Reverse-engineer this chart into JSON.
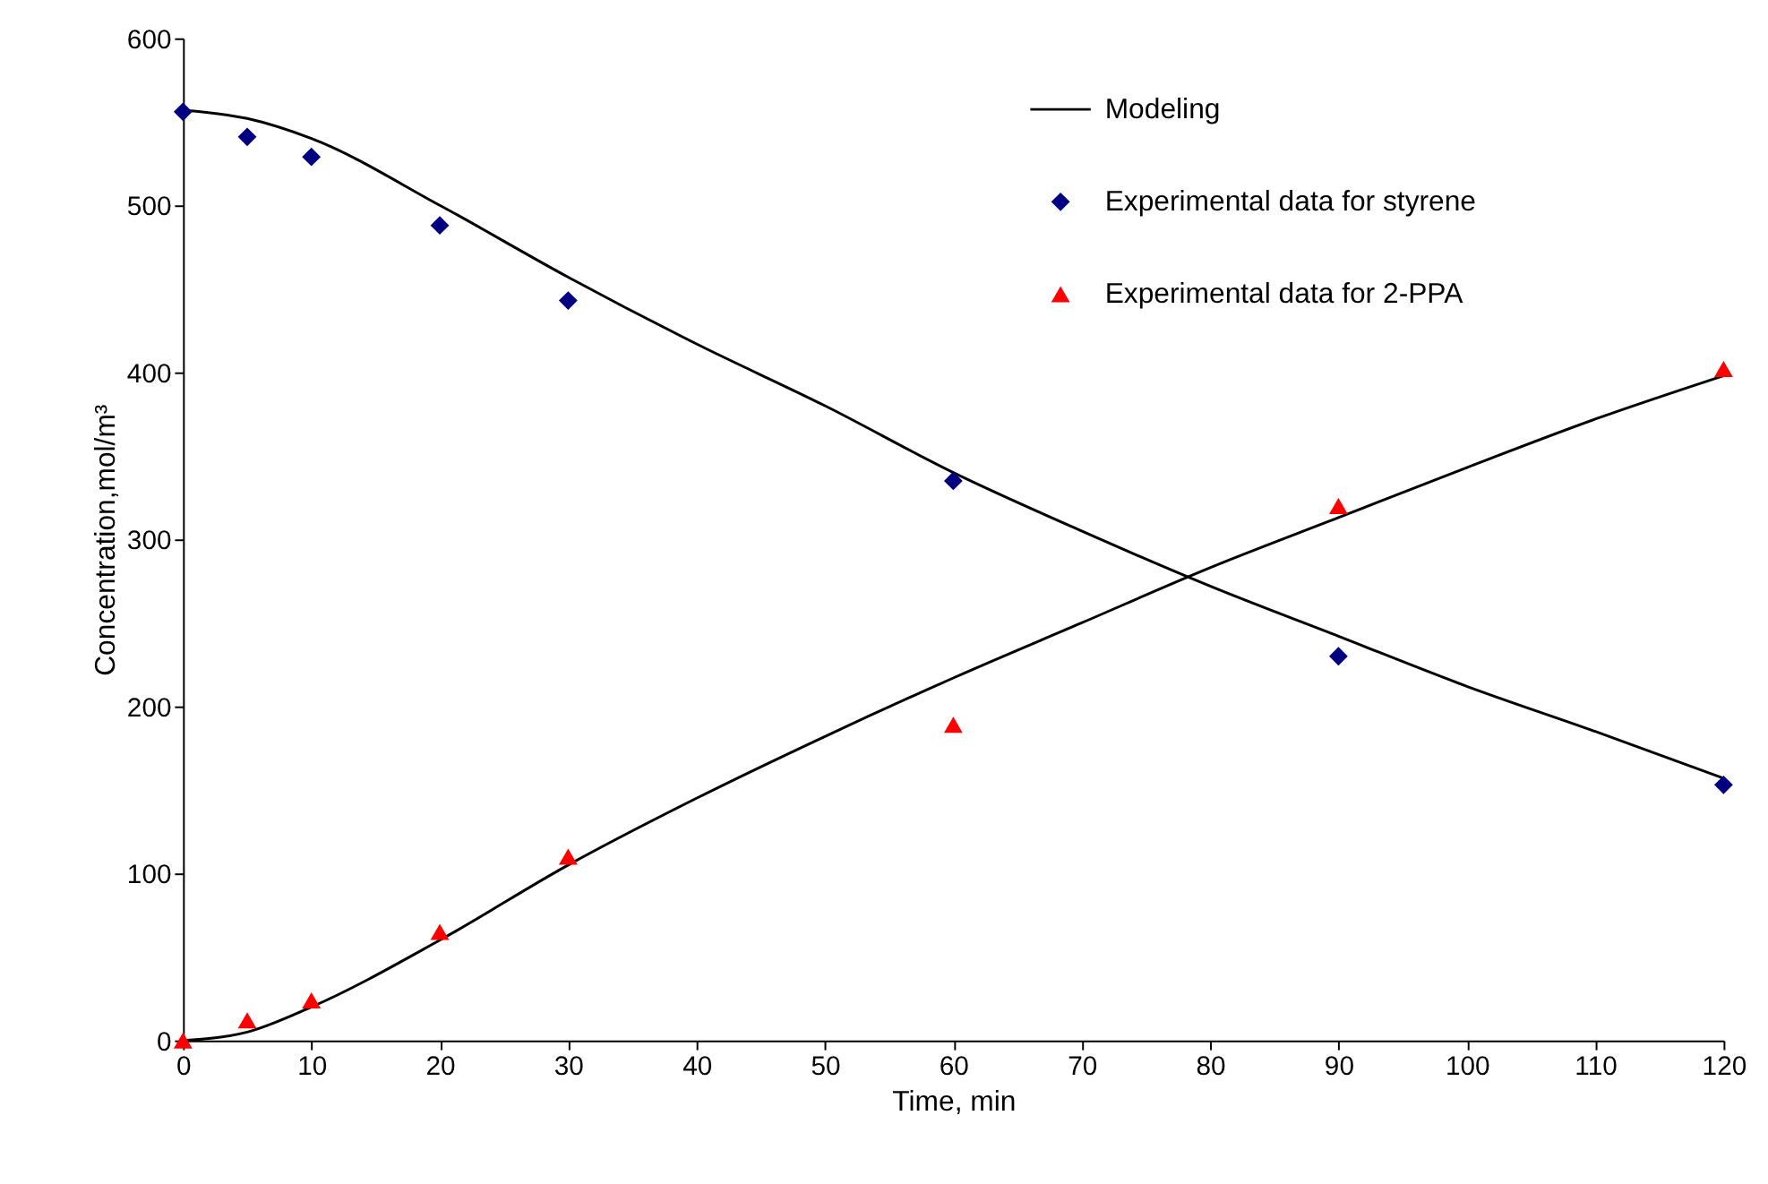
{
  "chart_data": {
    "type": "scatter",
    "xlabel": "Time, min",
    "ylabel": "Concentration,mol/m³",
    "xlim": [
      0,
      120
    ],
    "ylim": [
      0,
      600
    ],
    "xticks": [
      0,
      10,
      20,
      30,
      40,
      50,
      60,
      70,
      80,
      90,
      100,
      110,
      120
    ],
    "yticks": [
      0,
      100,
      200,
      300,
      400,
      500,
      600
    ],
    "grid": false,
    "legend": "top right",
    "series": [
      {
        "name": "Modeling",
        "type": "line",
        "color": "#000000",
        "marker": "none",
        "x": [
          0,
          5,
          10,
          20,
          30,
          40,
          50,
          60,
          70,
          80,
          90,
          100,
          110,
          120
        ],
        "values": [
          557,
          552,
          540,
          500,
          457,
          417,
          380,
          340,
          305,
          272,
          242,
          212,
          185,
          157
        ]
      },
      {
        "type": "line",
        "color": "#000000",
        "marker": "none",
        "x": [
          0,
          5,
          10,
          20,
          30,
          40,
          50,
          60,
          70,
          80,
          90,
          100,
          110,
          120
        ],
        "values": [
          0,
          5,
          20,
          60,
          105,
          145,
          182,
          217,
          250,
          283,
          313,
          343,
          372,
          398
        ]
      },
      {
        "name": "Experimental data for styrene",
        "color": "#000080",
        "marker": "diamond",
        "x": [
          0,
          5,
          10,
          20,
          30,
          60,
          90,
          120
        ],
        "values": [
          556,
          541,
          529,
          488,
          443,
          335,
          230,
          153
        ]
      },
      {
        "name": "Experimental data for 2-PPA",
        "color": "#ff0000",
        "marker": "triangle",
        "x": [
          0,
          5,
          10,
          20,
          30,
          60,
          90,
          120
        ],
        "values": [
          0,
          12,
          24,
          65,
          110,
          189,
          320,
          402
        ]
      }
    ]
  }
}
